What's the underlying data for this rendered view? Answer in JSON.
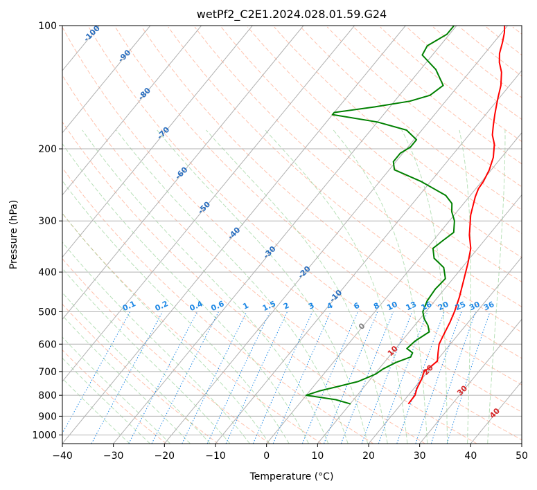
{
  "chart_data": {
    "type": "line",
    "subtype": "skew-t log-p diagram",
    "title": "wetPf2_C2E1.2024.028.01.59.G24",
    "xlabel": "Temperature (°C)",
    "ylabel": "Pressure (hPa)",
    "xlim": [
      -40,
      50
    ],
    "ylim": [
      1050,
      100
    ],
    "y_scale": "log",
    "x_ticks": [
      "−40",
      "−30",
      "−20",
      "−10",
      "0",
      "10",
      "20",
      "30",
      "40",
      "50"
    ],
    "y_ticks": [
      "100",
      "200",
      "300",
      "400",
      "500",
      "600",
      "700",
      "800",
      "900",
      "1000"
    ],
    "grid": true,
    "series": [
      {
        "role": "temperature",
        "color": "#ff0000",
        "points": [
          [
            21.4,
            840
          ],
          [
            21.3,
            800
          ],
          [
            20.6,
            770
          ],
          [
            20.0,
            730
          ],
          [
            19.3,
            700
          ],
          [
            19.8,
            680
          ],
          [
            20.2,
            660
          ],
          [
            19.0,
            630
          ],
          [
            17.8,
            600
          ],
          [
            17.2,
            570
          ],
          [
            16.4,
            530
          ],
          [
            15.6,
            500
          ],
          [
            14.2,
            460
          ],
          [
            12.4,
            420
          ],
          [
            10.4,
            380
          ],
          [
            8.6,
            350
          ],
          [
            6.2,
            325
          ],
          [
            3.2,
            290
          ],
          [
            1.2,
            262
          ],
          [
            0.5,
            250
          ],
          [
            0.3,
            240
          ],
          [
            -0.4,
            225
          ],
          [
            -1.6,
            210
          ],
          [
            -3.5,
            195
          ],
          [
            -5.4,
            185
          ],
          [
            -6.8,
            175
          ],
          [
            -8.2,
            165
          ],
          [
            -9.3,
            157
          ],
          [
            -10.3,
            150
          ],
          [
            -11.7,
            140
          ],
          [
            -13.7,
            130
          ],
          [
            -15.7,
            123
          ],
          [
            -17.1,
            117
          ],
          [
            -18.3,
            110
          ],
          [
            -19.5,
            104
          ],
          [
            -20.6,
            100
          ]
        ]
      },
      {
        "role": "dewpoint",
        "color": "#008000",
        "points": [
          [
            10.1,
            840
          ],
          [
            6.5,
            820
          ],
          [
            0.0,
            800
          ],
          [
            2.0,
            780
          ],
          [
            5.0,
            760
          ],
          [
            8.0,
            740
          ],
          [
            10.2,
            710
          ],
          [
            10.8,
            690
          ],
          [
            12.3,
            665
          ],
          [
            14.3,
            645
          ],
          [
            14.0,
            630
          ],
          [
            12.2,
            615
          ],
          [
            12.6,
            590
          ],
          [
            13.9,
            560
          ],
          [
            12.6,
            540
          ],
          [
            10.8,
            520
          ],
          [
            9.4,
            500
          ],
          [
            8.5,
            470
          ],
          [
            8.2,
            440
          ],
          [
            8.5,
            415
          ],
          [
            6.4,
            390
          ],
          [
            3.0,
            370
          ],
          [
            1.2,
            350
          ],
          [
            1.9,
            335
          ],
          [
            2.7,
            320
          ],
          [
            1.0,
            300
          ],
          [
            -1.0,
            285
          ],
          [
            -2.3,
            272
          ],
          [
            -4.8,
            260
          ],
          [
            -12.0,
            240
          ],
          [
            -19.0,
            225
          ],
          [
            -20.5,
            215
          ],
          [
            -20.5,
            205
          ],
          [
            -19.5,
            198
          ],
          [
            -19.5,
            190
          ],
          [
            -23.0,
            180
          ],
          [
            -30.0,
            172
          ],
          [
            -40.0,
            165
          ],
          [
            -40.0,
            163
          ],
          [
            -33.0,
            158
          ],
          [
            -27.0,
            153
          ],
          [
            -24.0,
            148
          ],
          [
            -23.0,
            140
          ],
          [
            -27.0,
            128
          ],
          [
            -32.0,
            118
          ],
          [
            -32.5,
            112
          ],
          [
            -30.5,
            105
          ],
          [
            -30.5,
            100
          ]
        ]
      }
    ],
    "background_lines": {
      "isotherms": {
        "color": "#b0b0b0",
        "style": "solid"
      },
      "dry_adiabats": {
        "color": "#ff9977",
        "style": "dashed"
      },
      "moist_adiabats": {
        "color": "#88cc88",
        "style": "dashed"
      },
      "mixing_ratio": {
        "color": "#1e88e5",
        "style": "dotted"
      }
    },
    "mixing_ratio_labels": [
      "0.1",
      "0.2",
      "0.4",
      "0.6",
      "1",
      "1.5",
      "2",
      "3",
      "4",
      "6",
      "8",
      "10",
      "13",
      "16",
      "20",
      "25",
      "30",
      "36"
    ],
    "isotherm_labels": [
      "-100",
      "-90",
      "-80",
      "-70",
      "-60",
      "-50",
      "-40",
      "-30",
      "-20",
      "-10",
      "0",
      "10",
      "20",
      "30",
      "40"
    ],
    "label_colors": {
      "cold": "#2a6ebf",
      "zero": "#808080",
      "warm": "#d62728",
      "mixing": "#1e88e5"
    }
  }
}
